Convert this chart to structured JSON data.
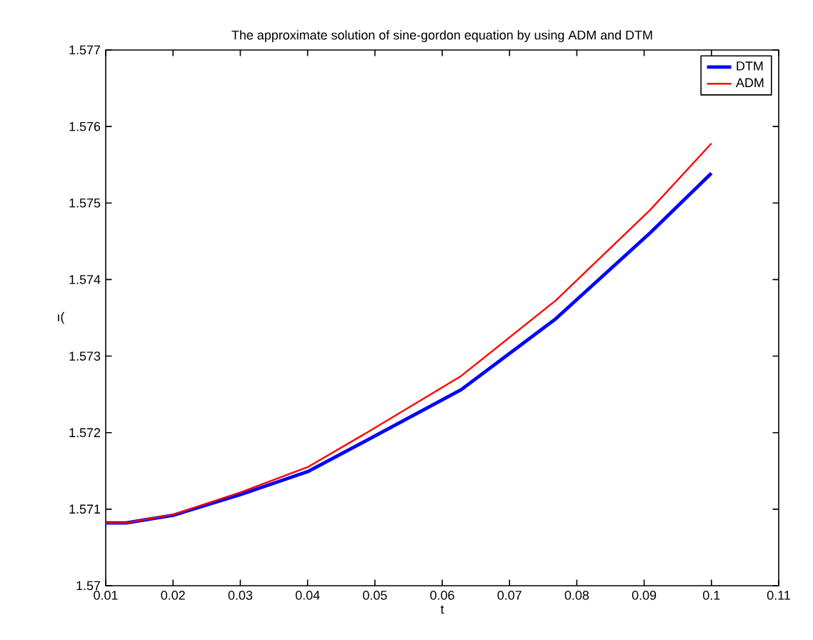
{
  "chart_data": {
    "type": "line",
    "title": "The approximate solution of sine-gordon equation by using ADM and DTM",
    "xlabel": "t",
    "ylabel": "ı(",
    "xlim": [
      0.01,
      0.11
    ],
    "ylim": [
      1.57,
      1.577
    ],
    "xticks": [
      0.01,
      0.02,
      0.03,
      0.04,
      0.05,
      0.06,
      0.07,
      0.08,
      0.09,
      0.1,
      0.11
    ],
    "yticks": [
      1.57,
      1.571,
      1.572,
      1.573,
      1.574,
      1.575,
      1.576,
      1.577
    ],
    "legend": "top right",
    "grid": false,
    "line_style": "solid",
    "series": [
      {
        "name": "DTM",
        "color": "#0000ff",
        "x": [
          0.01,
          0.013,
          0.02,
          0.03,
          0.04,
          0.0488,
          0.0628,
          0.0769,
          0.0909,
          0.1
        ],
        "values": [
          1.57082,
          1.57082,
          1.57092,
          1.57119,
          1.57149,
          1.5719,
          1.57256,
          1.57349,
          1.57461,
          1.57539
        ]
      },
      {
        "name": "ADM",
        "color": "#ff0000",
        "x": [
          0.01,
          0.013,
          0.02,
          0.03,
          0.04,
          0.0488,
          0.0628,
          0.0769,
          0.0909,
          0.1
        ],
        "values": [
          1.57082,
          1.57082,
          1.57093,
          1.57122,
          1.57155,
          1.572,
          1.57274,
          1.57373,
          1.57491,
          1.57578
        ]
      }
    ]
  }
}
